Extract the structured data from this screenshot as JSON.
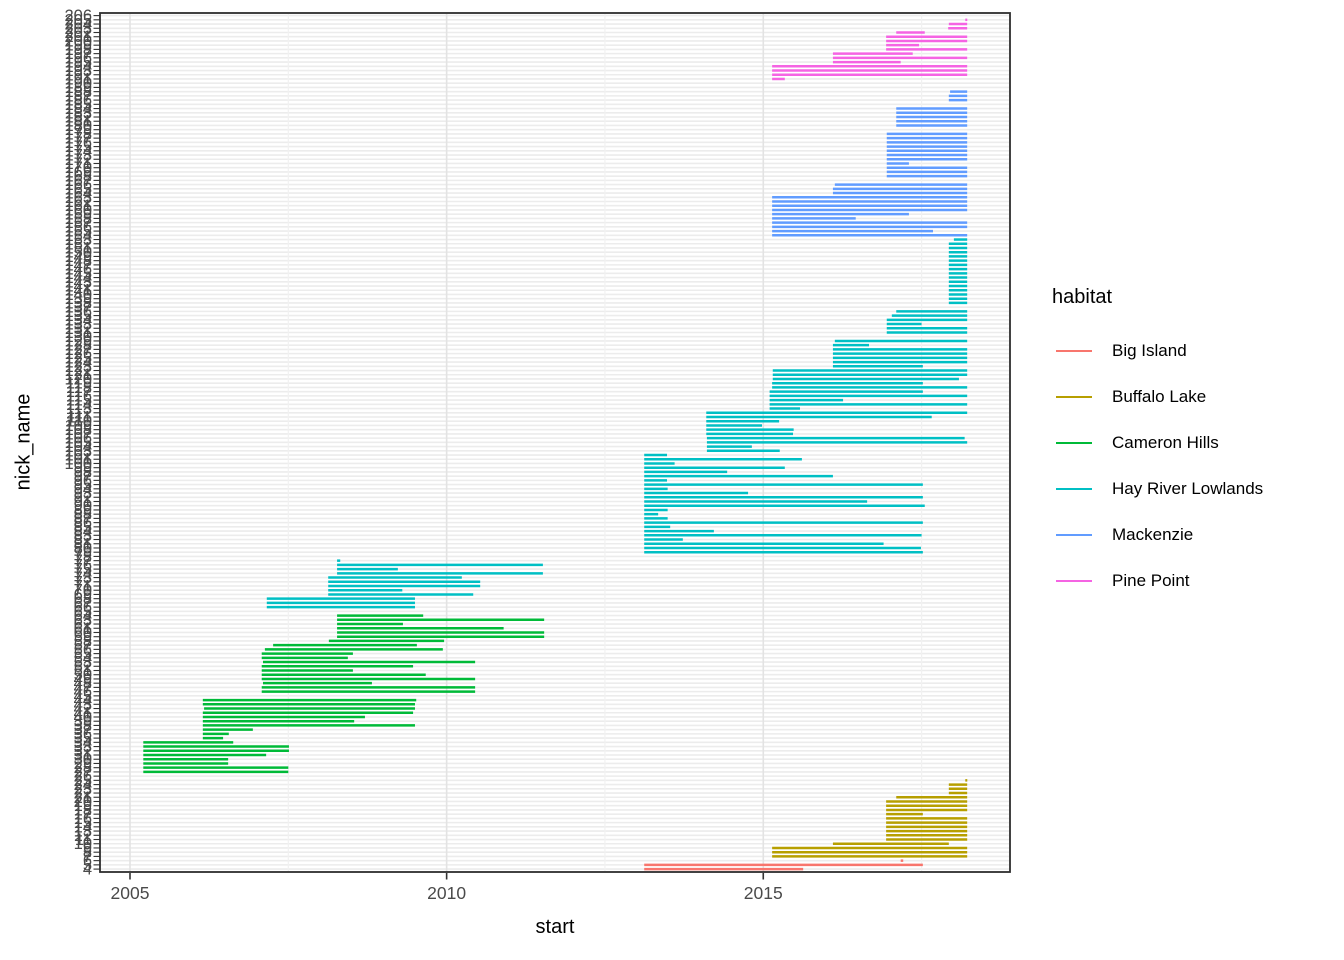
{
  "chart_data": {
    "type": "segment",
    "xlabel": "start",
    "ylabel": "nick_name",
    "x_ticks": [
      2005,
      2010,
      2015
    ],
    "x_minor_ticks": [
      2007.5,
      2012.5,
      2017.5
    ],
    "x_domain": [
      2004.53,
      2018.89
    ],
    "y_ticks": {
      "from": 4,
      "to": 206,
      "step": 1,
      "top_visible_label": "206",
      "bottom_visible_label": "4"
    },
    "grid": "on",
    "legend": {
      "title": "habitat",
      "position": "right"
    },
    "series": [
      {
        "name": "Big Island",
        "color": "#F8766D",
        "segments": [
          [
            6,
            2017.17,
            2017.21
          ],
          [
            5,
            2013.12,
            2017.52
          ],
          [
            4,
            2013.12,
            2015.63
          ]
        ]
      },
      {
        "name": "Buffalo Lake",
        "color": "#B79F00",
        "segments": [
          [
            25,
            2018.19,
            2018.22
          ],
          [
            24,
            2017.93,
            2018.22
          ],
          [
            23,
            2017.93,
            2018.22
          ],
          [
            22,
            2017.93,
            2018.22
          ],
          [
            21,
            2017.1,
            2018.22
          ],
          [
            20,
            2016.94,
            2018.22
          ],
          [
            19,
            2016.94,
            2018.22
          ],
          [
            18,
            2016.94,
            2018.22
          ],
          [
            17,
            2016.94,
            2017.52
          ],
          [
            16,
            2016.94,
            2018.22
          ],
          [
            15,
            2016.94,
            2018.22
          ],
          [
            14,
            2016.94,
            2018.22
          ],
          [
            13,
            2016.94,
            2018.22
          ],
          [
            12,
            2016.94,
            2018.22
          ],
          [
            11,
            2016.94,
            2018.22
          ],
          [
            10,
            2016.1,
            2017.93
          ],
          [
            9,
            2015.14,
            2018.22
          ],
          [
            8,
            2015.14,
            2018.22
          ],
          [
            7,
            2015.14,
            2018.22
          ]
        ]
      },
      {
        "name": "Cameron Hills",
        "color": "#00BA38",
        "segments": [
          [
            64,
            2008.27,
            2009.63
          ],
          [
            63,
            2008.27,
            2011.54
          ],
          [
            62,
            2008.27,
            2009.31
          ],
          [
            61,
            2008.27,
            2010.9
          ],
          [
            60,
            2008.27,
            2011.54
          ],
          [
            59,
            2008.27,
            2011.54
          ],
          [
            58,
            2008.14,
            2009.96
          ],
          [
            57,
            2007.26,
            2009.53
          ],
          [
            56,
            2007.13,
            2009.94
          ],
          [
            55,
            2007.08,
            2008.52
          ],
          [
            54,
            2007.08,
            2008.44
          ],
          [
            53,
            2007.1,
            2010.45
          ],
          [
            52,
            2007.08,
            2009.47
          ],
          [
            51,
            2007.08,
            2008.52
          ],
          [
            50,
            2007.08,
            2009.67
          ],
          [
            49,
            2007.08,
            2010.45
          ],
          [
            48,
            2007.1,
            2008.82
          ],
          [
            47,
            2007.08,
            2010.45
          ],
          [
            46,
            2007.08,
            2010.45
          ],
          [
            44,
            2006.15,
            2009.52
          ],
          [
            43,
            2006.15,
            2009.5
          ],
          [
            42,
            2006.17,
            2009.5
          ],
          [
            41,
            2006.15,
            2009.47
          ],
          [
            40,
            2006.15,
            2008.71
          ],
          [
            39,
            2006.15,
            2008.54
          ],
          [
            38,
            2006.15,
            2009.5
          ],
          [
            37,
            2006.15,
            2006.94
          ],
          [
            36,
            2006.15,
            2006.56
          ],
          [
            35,
            2006.15,
            2006.47
          ],
          [
            34,
            2005.21,
            2006.63
          ],
          [
            33,
            2005.21,
            2007.51
          ],
          [
            32,
            2005.21,
            2007.51
          ],
          [
            31,
            2005.21,
            2007.15
          ],
          [
            30,
            2005.21,
            2006.55
          ],
          [
            29,
            2005.21,
            2006.55
          ],
          [
            28,
            2005.21,
            2007.5
          ],
          [
            27,
            2005.21,
            2007.5
          ]
        ]
      },
      {
        "name": "Hay River Lowlands",
        "color": "#00BFC4",
        "segments": [
          [
            153,
            2018.01,
            2018.22
          ],
          [
            152,
            2017.93,
            2018.22
          ],
          [
            151,
            2017.93,
            2018.22
          ],
          [
            150,
            2017.93,
            2018.22
          ],
          [
            149,
            2017.93,
            2018.22
          ],
          [
            148,
            2017.93,
            2018.22
          ],
          [
            147,
            2017.93,
            2018.22
          ],
          [
            146,
            2017.93,
            2018.22
          ],
          [
            145,
            2017.93,
            2018.22
          ],
          [
            144,
            2017.93,
            2018.22
          ],
          [
            143,
            2017.93,
            2018.22
          ],
          [
            142,
            2017.93,
            2018.22
          ],
          [
            141,
            2017.93,
            2018.22
          ],
          [
            140,
            2017.93,
            2018.22
          ],
          [
            139,
            2017.93,
            2018.22
          ],
          [
            138,
            2017.93,
            2018.22
          ],
          [
            136,
            2017.1,
            2018.22
          ],
          [
            135,
            2017.03,
            2018.22
          ],
          [
            134,
            2016.95,
            2018.22
          ],
          [
            133,
            2016.95,
            2017.5
          ],
          [
            132,
            2016.95,
            2018.22
          ],
          [
            131,
            2016.95,
            2018.22
          ],
          [
            129,
            2016.13,
            2018.22
          ],
          [
            128,
            2016.1,
            2016.67
          ],
          [
            127,
            2016.1,
            2018.22
          ],
          [
            126,
            2016.1,
            2018.22
          ],
          [
            125,
            2016.1,
            2018.22
          ],
          [
            124,
            2016.1,
            2018.22
          ],
          [
            123,
            2016.1,
            2017.52
          ],
          [
            122,
            2015.15,
            2018.22
          ],
          [
            121,
            2015.15,
            2018.22
          ],
          [
            120,
            2015.15,
            2018.09
          ],
          [
            119,
            2015.14,
            2017.52
          ],
          [
            118,
            2015.14,
            2018.22
          ],
          [
            117,
            2015.1,
            2017.52
          ],
          [
            116,
            2015.1,
            2018.22
          ],
          [
            115,
            2015.1,
            2016.26
          ],
          [
            114,
            2015.1,
            2018.22
          ],
          [
            113,
            2015.1,
            2015.58
          ],
          [
            112,
            2014.1,
            2018.22
          ],
          [
            111,
            2014.1,
            2017.66
          ],
          [
            110,
            2014.1,
            2015.25
          ],
          [
            109,
            2014.1,
            2014.98
          ],
          [
            108,
            2014.1,
            2015.48
          ],
          [
            107,
            2014.1,
            2015.47
          ],
          [
            106,
            2014.11,
            2018.18
          ],
          [
            105,
            2014.11,
            2018.22
          ],
          [
            104,
            2014.11,
            2014.82
          ],
          [
            103,
            2014.11,
            2015.26
          ],
          [
            102,
            2013.12,
            2013.48
          ],
          [
            101,
            2013.12,
            2015.61
          ],
          [
            100,
            2013.12,
            2013.6
          ],
          [
            99,
            2013.12,
            2015.34
          ],
          [
            98,
            2013.12,
            2014.43
          ],
          [
            97,
            2013.12,
            2016.1
          ],
          [
            96,
            2013.12,
            2013.48
          ],
          [
            95,
            2013.12,
            2017.52
          ],
          [
            94,
            2013.12,
            2013.49
          ],
          [
            93,
            2013.12,
            2014.76
          ],
          [
            92,
            2013.12,
            2017.52
          ],
          [
            91,
            2013.12,
            2016.64
          ],
          [
            90,
            2013.12,
            2017.55
          ],
          [
            89,
            2013.12,
            2013.49
          ],
          [
            88,
            2013.12,
            2013.34
          ],
          [
            87,
            2013.12,
            2013.49
          ],
          [
            86,
            2013.12,
            2017.52
          ],
          [
            85,
            2013.12,
            2013.53
          ],
          [
            84,
            2013.12,
            2014.22
          ],
          [
            83,
            2013.12,
            2017.5
          ],
          [
            82,
            2013.12,
            2013.73
          ],
          [
            81,
            2013.12,
            2016.9
          ],
          [
            80,
            2013.12,
            2017.49
          ],
          [
            79,
            2013.12,
            2017.52
          ],
          [
            77,
            2008.27,
            2008.32
          ],
          [
            76,
            2008.27,
            2011.52
          ],
          [
            75,
            2008.27,
            2009.23
          ],
          [
            74,
            2008.27,
            2011.52
          ],
          [
            73,
            2008.13,
            2010.24
          ],
          [
            72,
            2008.13,
            2010.53
          ],
          [
            71,
            2008.13,
            2010.53
          ],
          [
            70,
            2008.13,
            2009.3
          ],
          [
            69,
            2008.13,
            2010.42
          ],
          [
            68,
            2007.16,
            2009.5
          ],
          [
            67,
            2007.16,
            2009.5
          ],
          [
            66,
            2007.16,
            2009.5
          ]
        ]
      },
      {
        "name": "Mackenzie",
        "color": "#619CFF",
        "segments": [
          [
            188,
            2017.95,
            2018.22
          ],
          [
            187,
            2017.93,
            2018.22
          ],
          [
            186,
            2017.93,
            2018.22
          ],
          [
            184,
            2017.1,
            2018.22
          ],
          [
            183,
            2017.1,
            2018.22
          ],
          [
            182,
            2017.1,
            2018.22
          ],
          [
            181,
            2017.1,
            2018.22
          ],
          [
            180,
            2017.1,
            2018.22
          ],
          [
            178,
            2016.95,
            2018.22
          ],
          [
            177,
            2016.95,
            2018.22
          ],
          [
            176,
            2016.95,
            2018.22
          ],
          [
            175,
            2016.95,
            2018.22
          ],
          [
            174,
            2016.95,
            2018.22
          ],
          [
            173,
            2016.95,
            2018.22
          ],
          [
            172,
            2016.95,
            2018.22
          ],
          [
            171,
            2016.95,
            2017.3
          ],
          [
            170,
            2016.95,
            2018.22
          ],
          [
            169,
            2016.95,
            2018.22
          ],
          [
            168,
            2016.95,
            2018.22
          ],
          [
            166,
            2016.13,
            2018.22
          ],
          [
            165,
            2016.1,
            2018.22
          ],
          [
            164,
            2016.1,
            2018.22
          ],
          [
            163,
            2015.14,
            2018.22
          ],
          [
            162,
            2015.14,
            2018.22
          ],
          [
            161,
            2015.14,
            2018.22
          ],
          [
            160,
            2015.14,
            2018.22
          ],
          [
            159,
            2015.14,
            2017.3
          ],
          [
            158,
            2015.14,
            2016.46
          ],
          [
            157,
            2015.14,
            2018.22
          ],
          [
            156,
            2015.14,
            2018.22
          ],
          [
            155,
            2015.14,
            2017.68
          ],
          [
            154,
            2015.14,
            2018.22
          ]
        ]
      },
      {
        "name": "Pine Point",
        "color": "#F564E3",
        "segments": [
          [
            205,
            2018.19,
            2018.22
          ],
          [
            204,
            2017.93,
            2018.22
          ],
          [
            203,
            2017.92,
            2018.22
          ],
          [
            202,
            2017.1,
            2017.55
          ],
          [
            201,
            2016.94,
            2018.22
          ],
          [
            200,
            2016.94,
            2018.22
          ],
          [
            199,
            2016.94,
            2017.46
          ],
          [
            198,
            2016.94,
            2018.22
          ],
          [
            197,
            2016.1,
            2017.36
          ],
          [
            196,
            2016.1,
            2018.22
          ],
          [
            195,
            2016.1,
            2017.17
          ],
          [
            194,
            2015.14,
            2018.22
          ],
          [
            193,
            2015.14,
            2018.22
          ],
          [
            192,
            2015.14,
            2018.22
          ],
          [
            191,
            2015.14,
            2015.34
          ]
        ]
      }
    ]
  }
}
